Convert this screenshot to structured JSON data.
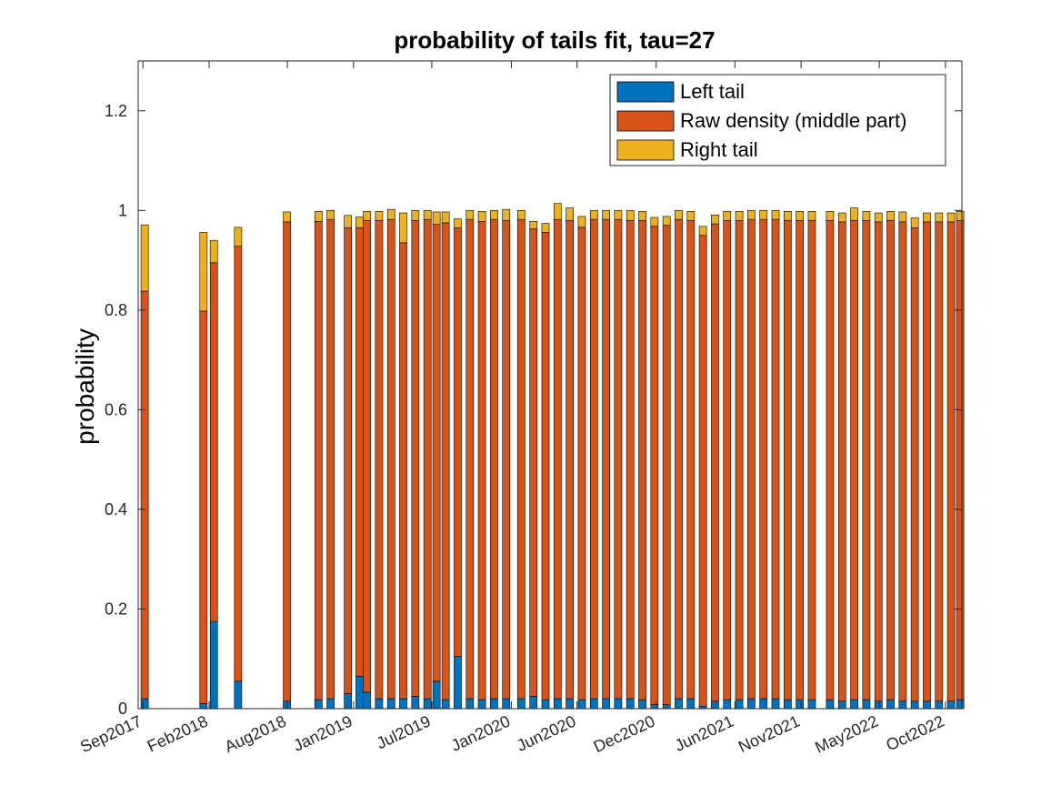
{
  "chart_data": {
    "type": "bar",
    "stacked": true,
    "title": "probability of tails fit, tau=27",
    "xlabel": "",
    "ylabel": "probability",
    "ylim": [
      0,
      1.3
    ],
    "yticks": [
      0,
      0.2,
      0.4,
      0.6,
      0.8,
      1,
      1.2
    ],
    "ytick_labels": [
      "0",
      "0.2",
      "0.4",
      "0.6",
      "0.8",
      "1",
      "1.2"
    ],
    "xlim": [
      "2017-08-21",
      "2022-11-08"
    ],
    "xticks": [
      "2017-09-01",
      "2018-02-01",
      "2018-08-01",
      "2019-01-01",
      "2019-07-01",
      "2020-01-01",
      "2020-06-01",
      "2020-12-01",
      "2021-06-01",
      "2021-11-01",
      "2022-05-01",
      "2022-10-01"
    ],
    "xtick_labels": [
      "Sep2017",
      "Feb2018",
      "Aug2018",
      "Jan2019",
      "Jul2019",
      "Jan2020",
      "Jun2020",
      "Dec2020",
      "Jun2021",
      "Nov2021",
      "May2022",
      "Oct2022"
    ],
    "bar_width_days": 17,
    "legend_position": "top-right",
    "grid": false,
    "x": [
      "2017-09-05",
      "2018-01-19",
      "2018-02-12",
      "2018-04-09",
      "2018-07-31",
      "2018-10-12",
      "2018-11-09",
      "2018-12-19",
      "2019-01-15",
      "2019-02-01",
      "2019-03-01",
      "2019-03-29",
      "2019-04-26",
      "2019-05-24",
      "2019-06-21",
      "2019-07-12",
      "2019-08-02",
      "2019-08-30",
      "2019-09-27",
      "2019-10-25",
      "2019-11-22",
      "2019-12-20",
      "2020-01-24",
      "2020-02-21",
      "2020-03-20",
      "2020-04-17",
      "2020-05-15",
      "2020-06-12",
      "2020-07-10",
      "2020-08-07",
      "2020-09-04",
      "2020-10-02",
      "2020-10-30",
      "2020-11-27",
      "2020-12-25",
      "2021-01-22",
      "2021-02-19",
      "2021-03-19",
      "2021-04-16",
      "2021-05-14",
      "2021-06-11",
      "2021-07-09",
      "2021-08-06",
      "2021-09-03",
      "2021-10-01",
      "2021-10-29",
      "2021-11-26",
      "2022-01-07",
      "2022-02-04",
      "2022-03-04",
      "2022-04-01",
      "2022-04-29",
      "2022-05-27",
      "2022-06-24",
      "2022-07-22",
      "2022-08-19",
      "2022-09-16",
      "2022-10-14",
      "2022-11-04"
    ],
    "series": [
      {
        "name": "Left tail",
        "color": "#0072BD",
        "values": [
          0.02,
          0.01,
          0.175,
          0.055,
          0.015,
          0.018,
          0.02,
          0.03,
          0.065,
          0.033,
          0.02,
          0.02,
          0.02,
          0.025,
          0.02,
          0.055,
          0.018,
          0.105,
          0.02,
          0.018,
          0.02,
          0.02,
          0.02,
          0.025,
          0.018,
          0.02,
          0.02,
          0.018,
          0.02,
          0.02,
          0.02,
          0.02,
          0.018,
          0.008,
          0.008,
          0.02,
          0.02,
          0.005,
          0.015,
          0.018,
          0.018,
          0.02,
          0.02,
          0.02,
          0.018,
          0.018,
          0.018,
          0.018,
          0.015,
          0.018,
          0.018,
          0.015,
          0.018,
          0.015,
          0.015,
          0.015,
          0.015,
          0.015,
          0.018
        ]
      },
      {
        "name": "Raw density (middle part)",
        "color": "#D95319",
        "values": [
          0.818,
          0.788,
          0.72,
          0.873,
          0.962,
          0.96,
          0.962,
          0.935,
          0.9,
          0.947,
          0.96,
          0.962,
          0.915,
          0.955,
          0.962,
          0.917,
          0.957,
          0.86,
          0.962,
          0.96,
          0.962,
          0.96,
          0.962,
          0.938,
          0.938,
          0.962,
          0.96,
          0.948,
          0.962,
          0.962,
          0.962,
          0.96,
          0.962,
          0.96,
          0.962,
          0.962,
          0.96,
          0.945,
          0.958,
          0.962,
          0.962,
          0.962,
          0.962,
          0.962,
          0.962,
          0.962,
          0.962,
          0.962,
          0.962,
          0.962,
          0.962,
          0.962,
          0.962,
          0.962,
          0.95,
          0.962,
          0.962,
          0.962,
          0.962
        ]
      },
      {
        "name": "Right tail",
        "color": "#EDB120",
        "values": [
          0.133,
          0.158,
          0.045,
          0.038,
          0.02,
          0.02,
          0.018,
          0.025,
          0.022,
          0.018,
          0.018,
          0.02,
          0.06,
          0.02,
          0.018,
          0.025,
          0.022,
          0.018,
          0.018,
          0.02,
          0.018,
          0.022,
          0.018,
          0.015,
          0.018,
          0.032,
          0.025,
          0.022,
          0.018,
          0.018,
          0.018,
          0.02,
          0.018,
          0.018,
          0.018,
          0.018,
          0.018,
          0.018,
          0.018,
          0.018,
          0.018,
          0.018,
          0.018,
          0.018,
          0.018,
          0.018,
          0.018,
          0.018,
          0.018,
          0.025,
          0.018,
          0.018,
          0.018,
          0.02,
          0.02,
          0.018,
          0.018,
          0.018,
          0.018
        ]
      }
    ]
  }
}
